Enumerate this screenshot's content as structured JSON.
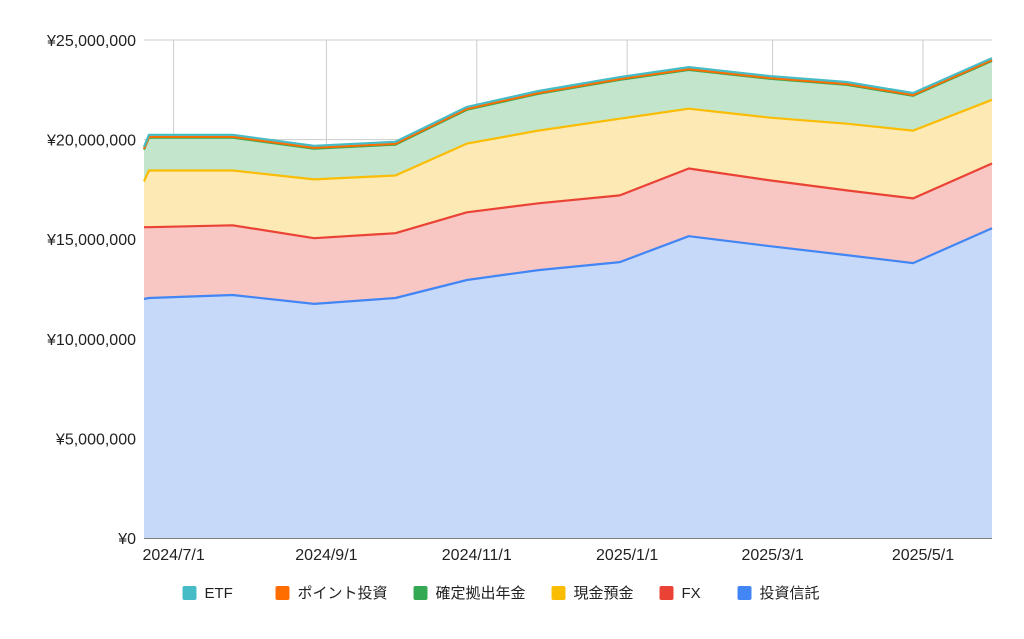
{
  "chart_data": {
    "type": "area",
    "stacked": true,
    "title": "",
    "xlabel": "",
    "ylabel": "",
    "x_axis": {
      "type": "date",
      "range": [
        "2024-06-19",
        "2025-05-29"
      ],
      "ticks": [
        {
          "date": "2024-07-01",
          "label": "2024/7/1"
        },
        {
          "date": "2024-09-01",
          "label": "2024/9/1"
        },
        {
          "date": "2024-11-01",
          "label": "2024/11/1"
        },
        {
          "date": "2025-01-01",
          "label": "2025/1/1"
        },
        {
          "date": "2025-03-01",
          "label": "2025/3/1"
        },
        {
          "date": "2025-05-01",
          "label": "2025/5/1"
        }
      ]
    },
    "y_axis": {
      "range": [
        0,
        25000000
      ],
      "ticks": [
        {
          "value": 0,
          "label": "¥0"
        },
        {
          "value": 5000000,
          "label": "¥5,000,000"
        },
        {
          "value": 10000000,
          "label": "¥10,000,000"
        },
        {
          "value": 15000000,
          "label": "¥15,000,000"
        },
        {
          "value": 20000000,
          "label": "¥20,000,000"
        },
        {
          "value": 25000000,
          "label": "¥25,000,000"
        }
      ]
    },
    "grid": true,
    "legend_position": "bottom",
    "x": [
      "2024-06-19",
      "2024-06-21",
      "2024-07-25",
      "2024-08-27",
      "2024-09-29",
      "2024-10-28",
      "2024-11-26",
      "2024-12-29",
      "2025-01-26",
      "2025-02-28",
      "2025-03-31",
      "2025-04-27",
      "2025-05-29"
    ],
    "series": [
      {
        "name": "投資信託",
        "color": "#4285f4",
        "fill": "#c6d9f9",
        "values": [
          12000000,
          12050000,
          12200000,
          11750000,
          12050000,
          12950000,
          13450000,
          13850000,
          15150000,
          14650000,
          14200000,
          13800000,
          15550000
        ]
      },
      {
        "name": "FX",
        "color": "#ea4335",
        "fill": "#f8c7c3",
        "values": [
          3600000,
          3550000,
          3500000,
          3300000,
          3250000,
          3400000,
          3350000,
          3350000,
          3400000,
          3300000,
          3250000,
          3250000,
          3250000
        ]
      },
      {
        "name": "現金預金",
        "color": "#fbbc04",
        "fill": "#fde9b3",
        "values": [
          2300000,
          2850000,
          2750000,
          2950000,
          2900000,
          3450000,
          3650000,
          3850000,
          3000000,
          3150000,
          3350000,
          3400000,
          3200000
        ]
      },
      {
        "name": "確定拠出年金",
        "color": "#34a853",
        "fill": "#c2e5cb",
        "values": [
          1600000,
          1650000,
          1650000,
          1550000,
          1550000,
          1700000,
          1850000,
          1950000,
          1950000,
          1950000,
          1950000,
          1750000,
          1950000
        ]
      },
      {
        "name": "ポイント投資",
        "color": "#ff6d01",
        "fill": "#ffd3b0",
        "values": [
          40000,
          40000,
          40000,
          40000,
          40000,
          40000,
          40000,
          40000,
          40000,
          40000,
          40000,
          40000,
          40000
        ]
      },
      {
        "name": "ETF",
        "color": "#46bdc6",
        "fill": "#c5eaec",
        "values": [
          100000,
          100000,
          100000,
          100000,
          100000,
          100000,
          100000,
          100000,
          100000,
          100000,
          100000,
          100000,
          100000
        ]
      }
    ],
    "legend_order": [
      "ETF",
      "ポイント投資",
      "確定拠出年金",
      "現金預金",
      "FX",
      "投資信託"
    ]
  }
}
